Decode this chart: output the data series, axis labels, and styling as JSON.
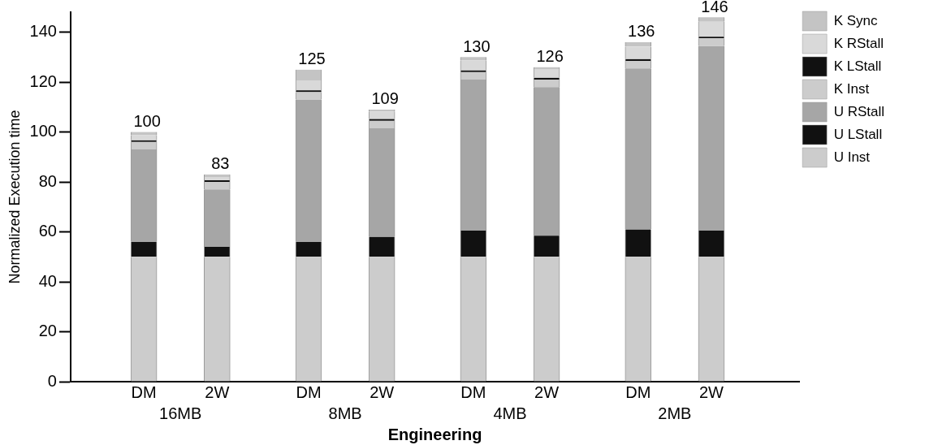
{
  "chart_data": {
    "type": "bar",
    "stacked": true,
    "xlabel": "Engineering",
    "ylabel": "Normalized Execution time",
    "categories": [
      "DM",
      "2W",
      "DM",
      "2W",
      "DM",
      "2W",
      "DM",
      "2W"
    ],
    "annotations": [
      "16MB",
      "8MB",
      "4MB",
      "2MB"
    ],
    "series": [
      {
        "name": "U Inst",
        "color": "#cccccc",
        "values": [
          50,
          50,
          50,
          50,
          50,
          50,
          50,
          50
        ]
      },
      {
        "name": "U LStall",
        "color": "#111111",
        "values": [
          6,
          4,
          6,
          8,
          10.5,
          8.5,
          11,
          10.5
        ]
      },
      {
        "name": "U RStall",
        "color": "#a6a6a6",
        "values": [
          37,
          23,
          57,
          43.5,
          60.5,
          59.5,
          64.5,
          74
        ]
      },
      {
        "name": "K Inst",
        "color": "#cccccc",
        "values": [
          3,
          3,
          3,
          3,
          3,
          3,
          3,
          3
        ]
      },
      {
        "name": "K LStall",
        "color": "#111111",
        "values": [
          0.7,
          0.7,
          0.7,
          0.7,
          0.7,
          0.7,
          0.7,
          0.7
        ]
      },
      {
        "name": "K RStall",
        "color": "#d9d9d9",
        "values": [
          2,
          1.3,
          4,
          3,
          4,
          3.5,
          5,
          6
        ]
      },
      {
        "name": "K Sync",
        "color": "#c4c4c4",
        "values": [
          1.3,
          1,
          4.3,
          0.8,
          1.3,
          0.8,
          1.8,
          1.8
        ]
      }
    ],
    "totals": [
      "100",
      "83",
      "125",
      "109",
      "130",
      "126",
      "136",
      "146"
    ],
    "ylim": [
      0,
      148
    ],
    "yticks": [
      0,
      20,
      40,
      60,
      80,
      100,
      120,
      140
    ],
    "grid": false,
    "legend": "right"
  }
}
